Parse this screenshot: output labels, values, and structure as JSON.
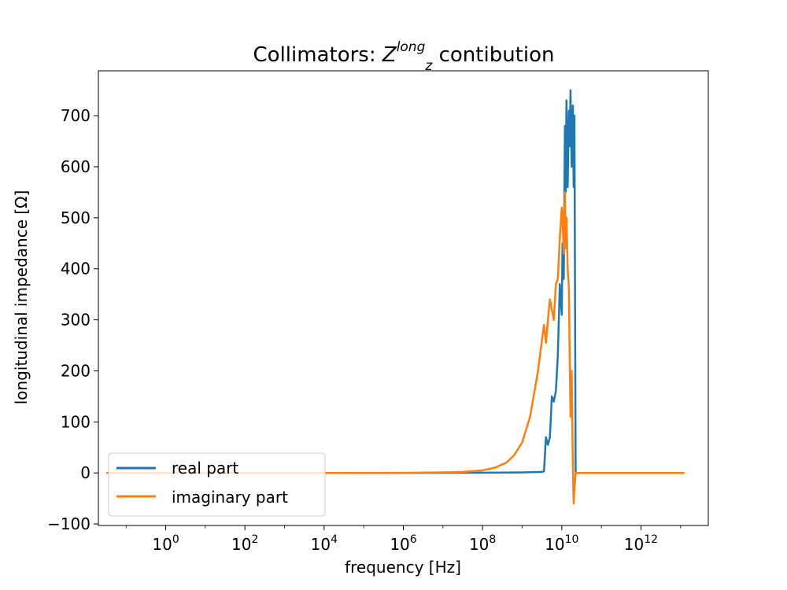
{
  "chart_data": {
    "type": "line",
    "title": {
      "prefix": "Collimators: ",
      "symbol": "Z",
      "subscript": "z",
      "superscript": "long",
      "suffix": " contibution"
    },
    "xlabel": "frequency [Hz]",
    "ylabel": "longitudinal impedance [Ω]",
    "x_scale": "log",
    "xlim_exponent": [
      -1.7,
      13.7
    ],
    "ylim": [
      -103,
      788
    ],
    "x_ticks": [
      {
        "base": "10",
        "exp": "0",
        "value": 0
      },
      {
        "base": "10",
        "exp": "2",
        "value": 2
      },
      {
        "base": "10",
        "exp": "4",
        "value": 4
      },
      {
        "base": "10",
        "exp": "6",
        "value": 6
      },
      {
        "base": "10",
        "exp": "8",
        "value": 8
      },
      {
        "base": "10",
        "exp": "10",
        "value": 10
      },
      {
        "base": "10",
        "exp": "12",
        "value": 12
      }
    ],
    "y_ticks": [
      {
        "label": "−100",
        "value": -100
      },
      {
        "label": "0",
        "value": 0
      },
      {
        "label": "100",
        "value": 100
      },
      {
        "label": "200",
        "value": 200
      },
      {
        "label": "300",
        "value": 300
      },
      {
        "label": "400",
        "value": 400
      },
      {
        "label": "500",
        "value": 500
      },
      {
        "label": "600",
        "value": 600
      },
      {
        "label": "700",
        "value": 700
      }
    ],
    "legend_position": "lower-left",
    "grid": false,
    "series": [
      {
        "name": "real part",
        "color": "#1f77b4",
        "log10_x": [
          -1.5,
          4,
          6,
          8,
          9,
          9.5,
          9.55,
          9.6,
          9.65,
          9.7,
          9.75,
          9.8,
          9.85,
          9.9,
          9.95,
          10.0,
          10.02,
          10.05,
          10.08,
          10.1,
          10.12,
          10.15,
          10.18,
          10.2,
          10.22,
          10.25,
          10.28,
          10.3,
          10.32,
          10.35,
          10.36
        ],
        "y": [
          0,
          0,
          0,
          0.5,
          1,
          2,
          3,
          70,
          55,
          70,
          150,
          140,
          160,
          230,
          370,
          310,
          450,
          380,
          680,
          550,
          730,
          560,
          710,
          640,
          750,
          600,
          720,
          560,
          700,
          5,
          0
        ]
      },
      {
        "name": "imaginary part",
        "color": "#ff7f0e",
        "log10_x": [
          -1.5,
          2,
          4,
          6,
          7,
          7.5,
          8,
          8.3,
          8.6,
          8.8,
          9.0,
          9.2,
          9.4,
          9.5,
          9.55,
          9.6,
          9.65,
          9.7,
          9.8,
          9.85,
          9.9,
          9.95,
          10.0,
          10.02,
          10.05,
          10.08,
          10.1,
          10.12,
          10.15,
          10.18,
          10.2,
          10.22,
          10.25,
          10.28,
          10.3,
          10.32,
          10.35,
          10.4,
          11,
          13.1
        ],
        "y": [
          0,
          0,
          0,
          0.2,
          1,
          2,
          5,
          10,
          20,
          35,
          60,
          110,
          200,
          260,
          290,
          255,
          300,
          340,
          300,
          370,
          380,
          460,
          520,
          500,
          430,
          550,
          440,
          500,
          400,
          360,
          220,
          110,
          200,
          10,
          -60,
          -30,
          0,
          0,
          0,
          0
        ]
      }
    ]
  }
}
